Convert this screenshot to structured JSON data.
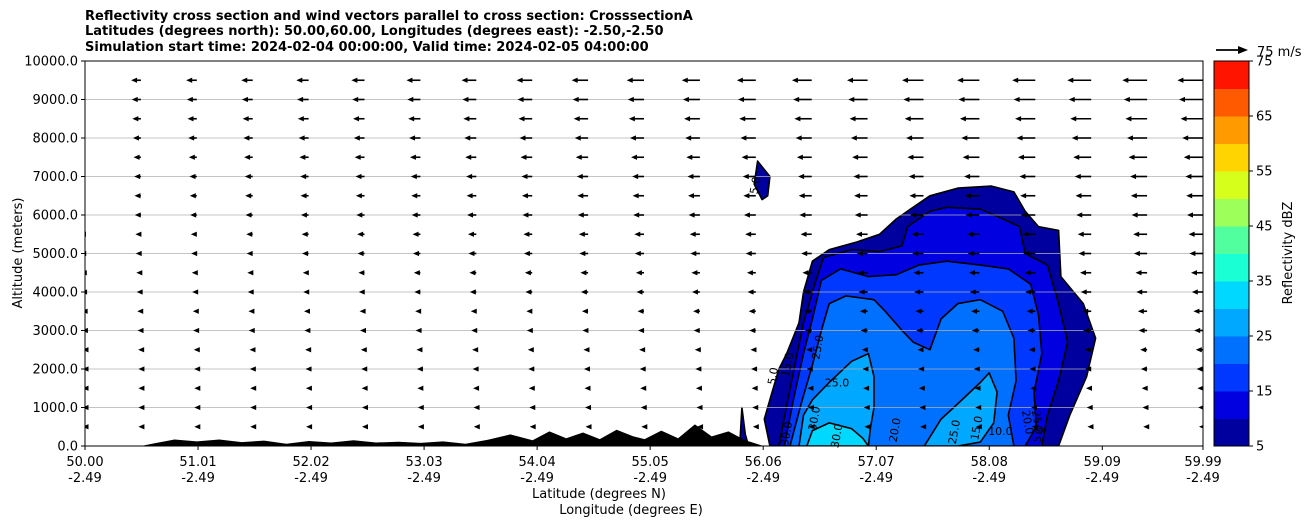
{
  "chart_data": {
    "type": "heatmap",
    "title_lines": [
      "Reflectivity cross section and wind vectors parallel to cross section: CrosssectionA",
      "Latitudes (degrees north): 50.00,60.00, Longitudes (degrees east): -2.50,-2.50",
      "Simulation start time: 2024-02-04 00:00:00, Valid time: 2024-02-05 04:00:00"
    ],
    "xlabel": "Latitude (degrees N)",
    "xlabel2": "Longitude (degrees E)",
    "ylabel": "Altitude (meters)",
    "xlim": [
      50.0,
      59.99
    ],
    "ylim": [
      0,
      10000
    ],
    "x_ticks": [
      {
        "lat": "50.00",
        "lon": "-2.49",
        "value": 50.0
      },
      {
        "lat": "51.01",
        "lon": "-2.49",
        "value": 51.01
      },
      {
        "lat": "52.02",
        "lon": "-2.49",
        "value": 52.02
      },
      {
        "lat": "53.03",
        "lon": "-2.49",
        "value": 53.03
      },
      {
        "lat": "54.04",
        "lon": "-2.49",
        "value": 54.04
      },
      {
        "lat": "55.05",
        "lon": "-2.49",
        "value": 55.05
      },
      {
        "lat": "56.06",
        "lon": "-2.49",
        "value": 56.06
      },
      {
        "lat": "57.07",
        "lon": "-2.49",
        "value": 57.07
      },
      {
        "lat": "58.08",
        "lon": "-2.49",
        "value": 58.08
      },
      {
        "lat": "59.09",
        "lon": "-2.49",
        "value": 59.09
      },
      {
        "lat": "59.99",
        "lon": "-2.49",
        "value": 59.99
      }
    ],
    "y_ticks": [
      {
        "label": "0.0",
        "value": 0
      },
      {
        "label": "1000.0",
        "value": 1000
      },
      {
        "label": "2000.0",
        "value": 2000
      },
      {
        "label": "3000.0",
        "value": 3000
      },
      {
        "label": "4000.0",
        "value": 4000
      },
      {
        "label": "5000.0",
        "value": 5000
      },
      {
        "label": "6000.0",
        "value": 6000
      },
      {
        "label": "7000.0",
        "value": 7000
      },
      {
        "label": "8000.0",
        "value": 8000
      },
      {
        "label": "9000.0",
        "value": 9000
      },
      {
        "label": "10000.0",
        "value": 10000
      }
    ],
    "grid": "horizontal",
    "colorbar": {
      "label": "Reflectivity dBZ",
      "levels": [
        5,
        10,
        15,
        20,
        25,
        30,
        35,
        40,
        45,
        50,
        55,
        60,
        65,
        70,
        75
      ],
      "tick_labels": [
        "5",
        "15",
        "25",
        "35",
        "45",
        "55",
        "65",
        "75"
      ],
      "colors": [
        "#00009e",
        "#0000e0",
        "#0038ff",
        "#0070ff",
        "#00a8ff",
        "#00d8ff",
        "#1affd4",
        "#52ff9e",
        "#9cff5a",
        "#d6ff1c",
        "#ffd400",
        "#ff9a00",
        "#ff5a00",
        "#ff1400",
        "#a80000"
      ]
    },
    "wind_key": {
      "label": "75 m/s",
      "speed": 75
    },
    "wind_rows": [
      {
        "alt": 500,
        "speed": 5
      },
      {
        "alt": 1000,
        "speed": 6
      },
      {
        "alt": 1500,
        "speed": 7
      },
      {
        "alt": 2000,
        "speed": 8
      },
      {
        "alt": 2500,
        "speed": 9
      },
      {
        "alt": 3000,
        "speed": 11
      },
      {
        "alt": 3500,
        "speed": 12
      },
      {
        "alt": 4000,
        "speed": 14
      },
      {
        "alt": 4500,
        "speed": 15
      },
      {
        "alt": 5000,
        "speed": 17
      },
      {
        "alt": 5500,
        "speed": 18
      },
      {
        "alt": 6000,
        "speed": 20
      },
      {
        "alt": 6500,
        "speed": 21
      },
      {
        "alt": 7000,
        "speed": 22
      },
      {
        "alt": 7500,
        "speed": 24
      },
      {
        "alt": 8000,
        "speed": 26
      },
      {
        "alt": 8500,
        "speed": 28
      },
      {
        "alt": 9000,
        "speed": 30
      },
      {
        "alt": 9500,
        "speed": 32
      }
    ],
    "terrain": [
      [
        50.0,
        0
      ],
      [
        50.5,
        0
      ],
      [
        50.6,
        60
      ],
      [
        50.8,
        170
      ],
      [
        51.0,
        120
      ],
      [
        51.2,
        170
      ],
      [
        51.4,
        100
      ],
      [
        51.6,
        140
      ],
      [
        51.8,
        60
      ],
      [
        52.0,
        130
      ],
      [
        52.2,
        90
      ],
      [
        52.4,
        150
      ],
      [
        52.6,
        90
      ],
      [
        52.8,
        110
      ],
      [
        53.0,
        80
      ],
      [
        53.2,
        120
      ],
      [
        53.4,
        60
      ],
      [
        53.6,
        160
      ],
      [
        53.8,
        300
      ],
      [
        54.0,
        150
      ],
      [
        54.15,
        380
      ],
      [
        54.3,
        200
      ],
      [
        54.45,
        350
      ],
      [
        54.6,
        180
      ],
      [
        54.75,
        420
      ],
      [
        54.9,
        250
      ],
      [
        55.0,
        180
      ],
      [
        55.15,
        400
      ],
      [
        55.3,
        200
      ],
      [
        55.45,
        560
      ],
      [
        55.6,
        250
      ],
      [
        55.75,
        380
      ],
      [
        55.9,
        150
      ],
      [
        56.0,
        60
      ],
      [
        56.06,
        0
      ],
      [
        59.99,
        0
      ]
    ],
    "reflectivity_regions": [
      {
        "dbz": 5,
        "points": [
          [
            56.12,
            0
          ],
          [
            56.07,
            700
          ],
          [
            56.13,
            1300
          ],
          [
            56.2,
            2000
          ],
          [
            56.27,
            2400
          ],
          [
            56.38,
            3200
          ],
          [
            56.42,
            4000
          ],
          [
            56.5,
            4800
          ],
          [
            56.65,
            5100
          ],
          [
            56.9,
            5300
          ],
          [
            57.1,
            5500
          ],
          [
            57.25,
            5900
          ],
          [
            57.4,
            6200
          ],
          [
            57.55,
            6500
          ],
          [
            57.8,
            6700
          ],
          [
            58.1,
            6750
          ],
          [
            58.3,
            6600
          ],
          [
            58.4,
            6100
          ],
          [
            58.52,
            5700
          ],
          [
            58.7,
            5600
          ],
          [
            58.72,
            4400
          ],
          [
            58.92,
            3700
          ],
          [
            59.03,
            2800
          ],
          [
            58.95,
            1800
          ],
          [
            58.8,
            800
          ],
          [
            58.7,
            0
          ]
        ]
      },
      {
        "dbz": 5,
        "points": [
          [
            56.01,
            7400
          ],
          [
            56.12,
            7000
          ],
          [
            56.1,
            6500
          ],
          [
            56.05,
            6400
          ],
          [
            55.98,
            6800
          ]
        ]
      },
      {
        "dbz": 5,
        "points": [
          [
            55.85,
            0
          ],
          [
            55.87,
            1000
          ],
          [
            55.9,
            300
          ],
          [
            55.93,
            0
          ]
        ]
      },
      {
        "dbz": 10,
        "points": [
          [
            56.2,
            0
          ],
          [
            56.28,
            1200
          ],
          [
            56.35,
            2200
          ],
          [
            56.42,
            3200
          ],
          [
            56.52,
            4200
          ],
          [
            56.6,
            4900
          ],
          [
            56.85,
            5100
          ],
          [
            57.1,
            5050
          ],
          [
            57.3,
            5200
          ],
          [
            57.35,
            5700
          ],
          [
            57.55,
            6100
          ],
          [
            57.7,
            6200
          ],
          [
            58.0,
            6150
          ],
          [
            58.2,
            5900
          ],
          [
            58.35,
            5700
          ],
          [
            58.4,
            5000
          ],
          [
            58.6,
            4700
          ],
          [
            58.7,
            3700
          ],
          [
            58.78,
            2700
          ],
          [
            58.7,
            1700
          ],
          [
            58.6,
            800
          ],
          [
            58.55,
            0
          ]
        ]
      },
      {
        "dbz": 15,
        "points": [
          [
            56.25,
            0
          ],
          [
            56.33,
            1200
          ],
          [
            56.42,
            2400
          ],
          [
            56.5,
            3300
          ],
          [
            56.58,
            4300
          ],
          [
            56.75,
            4600
          ],
          [
            57.0,
            4400
          ],
          [
            57.25,
            4450
          ],
          [
            57.45,
            4700
          ],
          [
            57.7,
            4800
          ],
          [
            58.0,
            4700
          ],
          [
            58.25,
            4600
          ],
          [
            58.45,
            4200
          ],
          [
            58.52,
            3400
          ],
          [
            58.55,
            2400
          ],
          [
            58.48,
            1400
          ],
          [
            58.5,
            500
          ],
          [
            58.4,
            0
          ]
        ]
      },
      {
        "dbz": 20,
        "points": [
          [
            56.3,
            0
          ],
          [
            56.4,
            1100
          ],
          [
            56.5,
            2100
          ],
          [
            56.58,
            3000
          ],
          [
            56.65,
            3700
          ],
          [
            56.8,
            3900
          ],
          [
            57.05,
            3800
          ],
          [
            57.15,
            3500
          ],
          [
            57.3,
            3000
          ],
          [
            57.4,
            2700
          ],
          [
            57.55,
            2500
          ],
          [
            57.65,
            3300
          ],
          [
            57.8,
            3700
          ],
          [
            58.0,
            3800
          ],
          [
            58.2,
            3500
          ],
          [
            58.3,
            2800
          ],
          [
            58.32,
            1700
          ],
          [
            58.25,
            800
          ],
          [
            58.3,
            0
          ]
        ]
      },
      {
        "dbz": 25,
        "points": [
          [
            56.38,
            0
          ],
          [
            56.42,
            800
          ],
          [
            56.5,
            1200
          ],
          [
            56.65,
            1650
          ],
          [
            56.85,
            2200
          ],
          [
            57.0,
            2400
          ],
          [
            57.05,
            1800
          ],
          [
            57.05,
            1000
          ],
          [
            57.02,
            500
          ],
          [
            57.0,
            0
          ]
        ]
      },
      {
        "dbz": 25,
        "points": [
          [
            57.5,
            0
          ],
          [
            57.65,
            700
          ],
          [
            57.8,
            1100
          ],
          [
            58.0,
            1650
          ],
          [
            58.08,
            1900
          ],
          [
            58.15,
            1400
          ],
          [
            58.12,
            600
          ],
          [
            58.0,
            100
          ],
          [
            57.8,
            0
          ]
        ]
      },
      {
        "dbz": 30,
        "points": [
          [
            56.45,
            0
          ],
          [
            56.5,
            400
          ],
          [
            56.65,
            600
          ],
          [
            56.85,
            450
          ],
          [
            56.95,
            200
          ],
          [
            57.0,
            0
          ]
        ]
      }
    ],
    "contour_labels": [
      {
        "text": "5.0",
        "x": 56.02,
        "y": 6750,
        "rot": -80
      },
      {
        "text": "5.0",
        "x": 56.18,
        "y": 1800,
        "rot": -80
      },
      {
        "text": "15.0",
        "x": 56.31,
        "y": 2100,
        "rot": -80
      },
      {
        "text": "25.0",
        "x": 56.58,
        "y": 2550,
        "rot": -80
      },
      {
        "text": "25.0",
        "x": 56.72,
        "y": 1550,
        "rot": 0
      },
      {
        "text": "30.0",
        "x": 56.55,
        "y": 700,
        "rot": -80
      },
      {
        "text": "30.0",
        "x": 56.3,
        "y": 300,
        "rot": -80
      },
      {
        "text": "30.0",
        "x": 56.75,
        "y": 250,
        "rot": -80
      },
      {
        "text": "20.0",
        "x": 57.27,
        "y": 400,
        "rot": -80
      },
      {
        "text": "25.0",
        "x": 57.8,
        "y": 350,
        "rot": -80
      },
      {
        "text": "15.0",
        "x": 58.0,
        "y": 450,
        "rot": -80
      },
      {
        "text": "10.0",
        "x": 58.18,
        "y": 280,
        "rot": 0
      },
      {
        "text": "20.0",
        "x": 58.39,
        "y": 600,
        "rot": 80
      },
      {
        "text": "25.0",
        "x": 58.48,
        "y": 600,
        "rot": 80
      },
      {
        "text": "5.0",
        "x": 58.55,
        "y": 300,
        "rot": -80
      }
    ]
  }
}
